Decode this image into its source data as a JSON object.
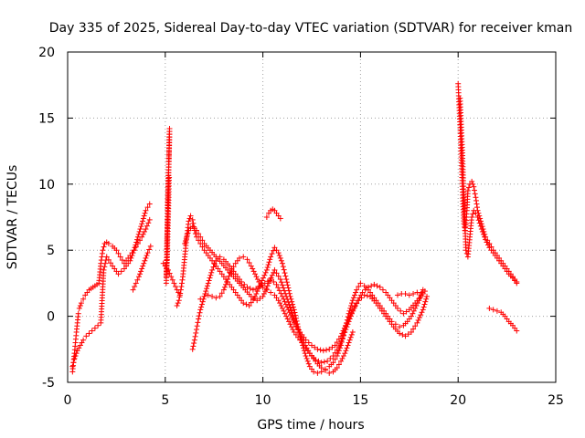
{
  "chart_data": {
    "type": "scatter",
    "title": "Day 335 of 2025, Sidereal Day-to-day VTEC variation (SDTVAR) for receiver kman",
    "xlabel": "GPS time / hours",
    "ylabel": "SDTVAR / TECUs",
    "xlim": [
      0,
      25
    ],
    "ylim": [
      -5,
      20
    ],
    "xticks": [
      "0",
      "5",
      "10",
      "15",
      "20",
      "25"
    ],
    "yticks": [
      "-5",
      "0",
      "5",
      "10",
      "15",
      "20"
    ],
    "grid": true,
    "marker": "+",
    "color": "#ff0000",
    "series": [
      {
        "name": "s1",
        "x": [
          0.25,
          0.35,
          0.5,
          0.65,
          0.8,
          0.95,
          1.1,
          1.25,
          1.4,
          1.55,
          1.7,
          1.85,
          2.0,
          2.3,
          2.6,
          2.9,
          3.2,
          3.4,
          3.6,
          3.8,
          4.0,
          4.2
        ],
        "y": [
          -3.8,
          -3.2,
          -2.6,
          -2.2,
          -1.8,
          -1.5,
          -1.3,
          -1.1,
          -0.9,
          -0.7,
          -0.5,
          3.5,
          4.5,
          3.8,
          3.2,
          3.6,
          4.2,
          5.0,
          6.0,
          7.0,
          8.0,
          8.5
        ]
      },
      {
        "name": "s2",
        "x": [
          0.25,
          0.3,
          0.35,
          0.4,
          0.45,
          0.5,
          0.55,
          0.6,
          0.7,
          0.8,
          0.9,
          1.0,
          1.1,
          1.2,
          1.3,
          1.4,
          1.5,
          1.6,
          1.7,
          1.8,
          1.9,
          2.0,
          2.1,
          2.3,
          2.5,
          2.7,
          2.9,
          3.0,
          3.2,
          3.4,
          3.6,
          3.8,
          4.0,
          4.2
        ],
        "y": [
          -4.2,
          -3.5,
          -2.8,
          -2.0,
          -1.2,
          -0.5,
          0.2,
          0.6,
          1.0,
          1.3,
          1.6,
          1.8,
          2.0,
          2.1,
          2.2,
          2.3,
          2.4,
          2.5,
          4.0,
          5.0,
          5.5,
          5.6,
          5.5,
          5.3,
          5.0,
          4.5,
          4.0,
          4.2,
          4.6,
          5.0,
          5.5,
          6.0,
          6.6,
          7.3
        ]
      },
      {
        "name": "s3",
        "x": [
          3.35,
          3.5,
          3.65,
          3.8,
          3.95,
          4.1,
          4.25
        ],
        "y": [
          2.0,
          2.5,
          3.0,
          3.6,
          4.2,
          4.8,
          5.3
        ]
      },
      {
        "name": "spike5",
        "x": [
          5.05,
          5.08,
          5.1,
          5.12,
          5.15,
          5.18,
          5.2,
          5.22,
          5.05,
          5.1,
          5.15,
          5.2
        ],
        "y": [
          2.5,
          4.0,
          6.0,
          8.0,
          10.0,
          11.5,
          12.7,
          14.2,
          3.0,
          4.5,
          7.5,
          10.5
        ]
      },
      {
        "name": "s4",
        "x": [
          5.6,
          5.7,
          5.8,
          5.9,
          6.0,
          6.1,
          6.2,
          6.3,
          6.4,
          6.5,
          6.6,
          6.8,
          7.0,
          7.2,
          7.5,
          7.8,
          8.1,
          8.4,
          8.7,
          9.0,
          9.3,
          9.6,
          9.9,
          10.2,
          10.4,
          10.6,
          10.8,
          11.0,
          11.2,
          11.4,
          11.6,
          11.8,
          12.0,
          12.2,
          12.4,
          12.6,
          12.8,
          13.0,
          13.2,
          13.4,
          13.6,
          13.8,
          14.0,
          14.2,
          14.4,
          14.6,
          14.8,
          15.0,
          15.2,
          15.4,
          15.6,
          15.8,
          16.0,
          16.2,
          16.4,
          16.6,
          16.8,
          17.0,
          17.2,
          17.4,
          17.6,
          17.8,
          18.0,
          18.2
        ],
        "y": [
          0.8,
          1.2,
          2.0,
          3.0,
          4.5,
          6.0,
          7.2,
          7.6,
          7.3,
          6.5,
          6.0,
          5.5,
          5.0,
          4.6,
          4.0,
          3.4,
          2.8,
          2.2,
          1.6,
          1.0,
          0.8,
          1.5,
          2.5,
          3.5,
          4.5,
          5.2,
          4.8,
          4.0,
          2.8,
          1.5,
          0.5,
          -0.8,
          -2.0,
          -3.0,
          -3.8,
          -4.2,
          -4.3,
          -4.2,
          -4.0,
          -3.8,
          -3.5,
          -3.0,
          -2.2,
          -1.0,
          0.2,
          1.2,
          2.0,
          2.5,
          2.3,
          2.0,
          1.6,
          1.2,
          0.8,
          0.4,
          0.0,
          -0.4,
          -0.6,
          -0.8,
          -0.7,
          -0.4,
          0.0,
          0.6,
          1.2,
          2.0
        ]
      },
      {
        "name": "s5",
        "x": [
          6.4,
          6.5,
          6.6,
          6.7,
          6.8,
          7.0,
          7.2,
          7.4,
          7.6,
          7.8,
          8.0,
          8.3,
          8.6,
          8.9,
          9.2,
          9.5,
          9.8,
          10.1,
          10.4,
          10.7,
          11.0,
          11.3,
          11.6,
          11.9,
          12.2,
          12.5,
          12.8,
          13.1,
          13.4,
          13.7,
          14.0,
          14.3,
          14.6,
          14.9,
          15.2,
          15.5,
          15.8,
          16.1,
          16.4,
          16.7,
          17.0,
          17.3,
          17.6,
          17.9,
          18.2,
          18.4
        ],
        "y": [
          -2.5,
          -1.8,
          -1.0,
          -0.2,
          0.5,
          1.5,
          2.5,
          3.5,
          4.2,
          4.5,
          4.3,
          3.8,
          3.2,
          2.6,
          2.2,
          2.0,
          2.2,
          2.5,
          2.8,
          2.4,
          1.5,
          0.5,
          -0.5,
          -1.2,
          -1.8,
          -2.2,
          -2.5,
          -2.6,
          -2.5,
          -2.2,
          -1.5,
          -0.5,
          0.5,
          1.2,
          1.6,
          1.5,
          1.0,
          0.4,
          -0.2,
          -0.8,
          -1.3,
          -1.5,
          -1.2,
          -0.5,
          0.5,
          1.5
        ]
      },
      {
        "name": "s6",
        "x": [
          6.0,
          6.2,
          6.4,
          6.6,
          6.8,
          7.0,
          7.3,
          7.6,
          7.9,
          8.2,
          8.5,
          8.8,
          9.1,
          9.4,
          9.7,
          10.0,
          10.3,
          10.6,
          10.9,
          11.2,
          11.5,
          11.8,
          12.1,
          12.4,
          12.7,
          13.0,
          13.3,
          13.6,
          13.9,
          14.2,
          14.5,
          14.8,
          15.1,
          15.4,
          15.7,
          16.0,
          16.3,
          16.6,
          16.9,
          17.2,
          17.5,
          17.8,
          18.1,
          18.3
        ],
        "y": [
          5.5,
          6.5,
          6.8,
          6.5,
          6.0,
          5.5,
          5.0,
          4.5,
          4.0,
          3.5,
          3.0,
          2.5,
          2.0,
          1.5,
          1.2,
          1.5,
          2.5,
          3.5,
          2.8,
          1.5,
          0.2,
          -1.0,
          -2.0,
          -2.8,
          -3.3,
          -3.5,
          -3.4,
          -3.0,
          -2.3,
          -1.2,
          0.0,
          1.0,
          1.8,
          2.2,
          2.4,
          2.2,
          1.8,
          1.2,
          0.6,
          0.2,
          0.5,
          1.0,
          1.5,
          1.9
        ]
      },
      {
        "name": "s7",
        "x": [
          6.8,
          7.0,
          7.2,
          7.4,
          7.6,
          7.8,
          8.0,
          8.2,
          8.4,
          8.6,
          8.8,
          9.0,
          9.2,
          9.4,
          9.6,
          9.8,
          10.0,
          10.2,
          10.4,
          10.6,
          10.8,
          11.0,
          11.2,
          11.4,
          11.6,
          11.8,
          12.0,
          12.2,
          12.4,
          12.6,
          12.8,
          13.0,
          13.2,
          13.4,
          13.6,
          13.8,
          14.0,
          14.2,
          14.4,
          14.6
        ],
        "y": [
          1.3,
          1.5,
          1.6,
          1.5,
          1.4,
          1.5,
          2.0,
          2.8,
          3.5,
          4.0,
          4.4,
          4.5,
          4.3,
          3.8,
          3.2,
          2.6,
          2.2,
          2.0,
          1.8,
          1.6,
          1.2,
          0.6,
          0.0,
          -0.6,
          -1.2,
          -1.6,
          -2.0,
          -2.4,
          -2.8,
          -3.2,
          -3.6,
          -3.9,
          -4.1,
          -4.3,
          -4.2,
          -3.9,
          -3.4,
          -2.8,
          -2.0,
          -1.2
        ]
      },
      {
        "name": "bump10",
        "x": [
          10.2,
          10.3,
          10.4,
          10.5,
          10.6,
          10.7,
          10.8,
          10.9
        ],
        "y": [
          7.5,
          7.8,
          8.0,
          8.1,
          8.0,
          7.8,
          7.6,
          7.4
        ]
      },
      {
        "name": "flat17",
        "x": [
          16.9,
          17.1,
          17.3,
          17.5,
          17.7,
          17.9,
          18.1
        ],
        "y": [
          1.6,
          1.7,
          1.7,
          1.6,
          1.7,
          1.8,
          1.7
        ]
      },
      {
        "name": "s8",
        "x": [
          4.9,
          5.0,
          5.15,
          5.3,
          5.45,
          5.6,
          5.75
        ],
        "y": [
          4.0,
          3.8,
          3.5,
          3.0,
          2.5,
          2.0,
          1.6
        ]
      },
      {
        "name": "spike20",
        "x": [
          20.0,
          20.05,
          20.1,
          20.15,
          20.2,
          20.25,
          20.3,
          20.35,
          20.4,
          20.45,
          20.5,
          20.6,
          20.7,
          20.8,
          20.9,
          21.0,
          21.2,
          21.4,
          21.6,
          21.8,
          22.0,
          22.2,
          22.4,
          22.6,
          22.8,
          23.0
        ],
        "y": [
          17.6,
          16.0,
          14.5,
          12.5,
          10.5,
          8.5,
          7.0,
          6.5,
          7.0,
          8.0,
          9.5,
          10.0,
          10.2,
          9.8,
          9.0,
          8.0,
          7.0,
          6.0,
          5.5,
          5.0,
          4.6,
          4.2,
          3.8,
          3.4,
          3.0,
          2.6
        ]
      },
      {
        "name": "spike20b",
        "x": [
          20.1,
          20.2,
          20.3,
          20.4,
          20.5,
          20.6,
          20.7,
          20.8,
          20.9,
          21.0,
          21.2,
          21.4,
          21.6,
          21.8,
          22.0,
          22.2,
          22.4,
          22.6,
          22.8,
          23.0
        ],
        "y": [
          16.5,
          13.0,
          9.0,
          5.0,
          4.5,
          6.0,
          7.5,
          8.0,
          7.8,
          7.5,
          6.6,
          5.8,
          5.2,
          4.8,
          4.4,
          4.0,
          3.6,
          3.2,
          2.9,
          2.5
        ]
      },
      {
        "name": "tail22",
        "x": [
          21.6,
          21.8,
          22.0,
          22.2,
          22.4,
          22.6,
          22.8,
          23.0
        ],
        "y": [
          0.6,
          0.5,
          0.4,
          0.3,
          0.0,
          -0.4,
          -0.7,
          -1.1
        ]
      }
    ]
  }
}
